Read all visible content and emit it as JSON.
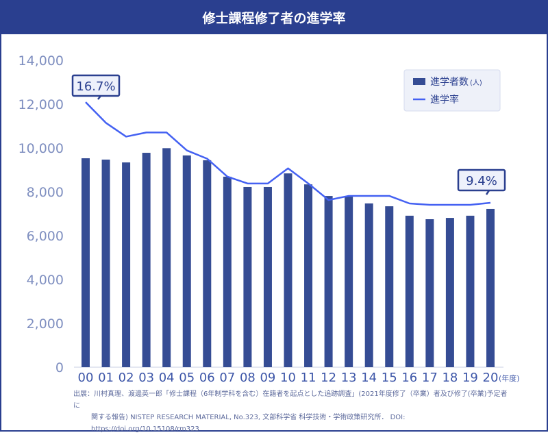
{
  "title": "修士課程修了者の進学率",
  "chart_data": {
    "type": "bar+line",
    "title": "修士課程修了者の進学率",
    "categories": [
      "00",
      "01",
      "02",
      "03",
      "04",
      "05",
      "06",
      "07",
      "08",
      "09",
      "10",
      "11",
      "12",
      "13",
      "14",
      "15",
      "16",
      "17",
      "18",
      "19",
      "20"
    ],
    "x_unit": "(年度)",
    "ylim": [
      0,
      14000
    ],
    "yticks": [
      "0",
      "2,000",
      "4,000",
      "6,000",
      "8,000",
      "10,000",
      "12,000",
      "14,000"
    ],
    "series": [
      {
        "name": "進学者数",
        "unit": "(人)",
        "type": "bar",
        "color": "#354c94",
        "values": [
          9530,
          9470,
          9340,
          9780,
          9990,
          9660,
          9440,
          8690,
          8220,
          8220,
          8840,
          8340,
          7810,
          7780,
          7470,
          7340,
          6910,
          6750,
          6810,
          6910,
          7220
        ]
      },
      {
        "name": "進学率",
        "type": "line",
        "color": "#4461f2",
        "values": [
          16.7,
          15.2,
          14.2,
          14.5,
          14.5,
          13.2,
          12.6,
          11.3,
          10.8,
          10.8,
          11.9,
          10.8,
          9.6,
          9.9,
          9.9,
          9.9,
          9.35,
          9.25,
          9.25,
          9.25,
          9.4
        ]
      }
    ],
    "annotations": [
      {
        "label": "16.7%",
        "category": "00"
      },
      {
        "label": "9.4%",
        "category": "20"
      }
    ],
    "legend": "top-right"
  },
  "source": {
    "line1": "出展：川村真理、渡邊英一郎「修士課程（6年制学科を含む）在籍者を起点とした追跡調査」(2021年度修了（卒業）者及び修了(卒業)予定者に",
    "line2": "関する報告) NISTEP RESEARCH MATERIAL, No.323, 文部科学省 科学技術・学術政策研究所． DOI:",
    "line3": "https://doi.org/10.15108/rm323"
  }
}
